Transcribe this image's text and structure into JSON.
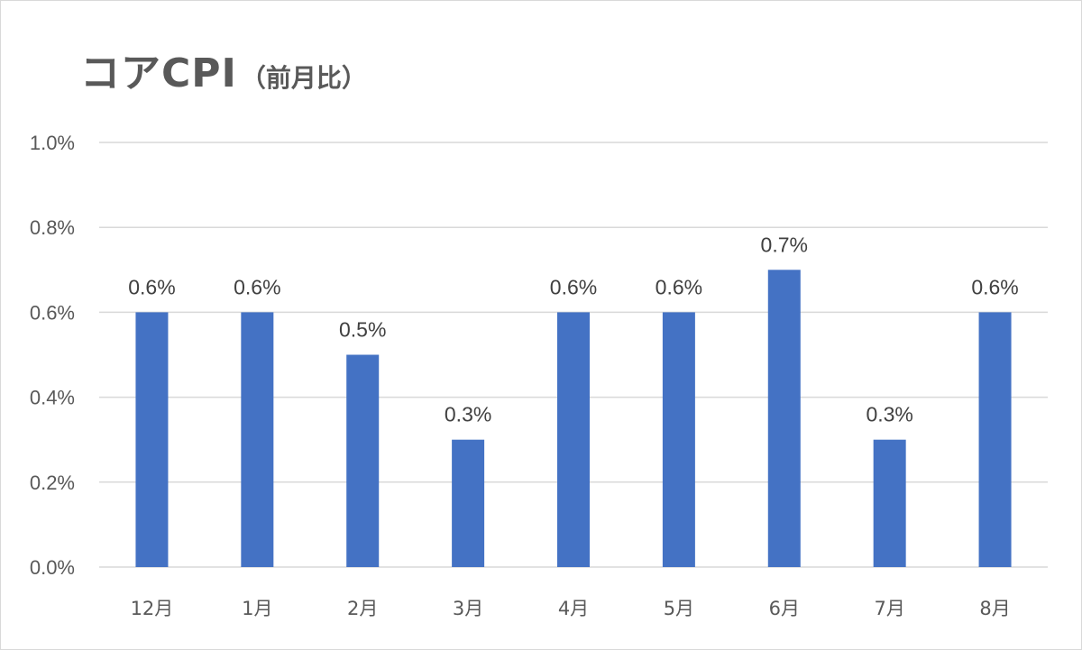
{
  "chart_data": {
    "type": "bar",
    "title_main": "コアCPI",
    "title_sub": "（前月比）",
    "categories": [
      "12月",
      "1月",
      "2月",
      "3月",
      "4月",
      "5月",
      "6月",
      "7月",
      "8月"
    ],
    "values": [
      0.6,
      0.6,
      0.5,
      0.3,
      0.6,
      0.6,
      0.7,
      0.3,
      0.6
    ],
    "value_labels": [
      "0.6%",
      "0.6%",
      "0.5%",
      "0.3%",
      "0.6%",
      "0.6%",
      "0.7%",
      "0.3%",
      "0.6%"
    ],
    "yticks": [
      0.0,
      0.2,
      0.4,
      0.6,
      0.8,
      1.0
    ],
    "ytick_labels": [
      "0.0%",
      "0.2%",
      "0.4%",
      "0.6%",
      "0.8%",
      "1.0%"
    ],
    "ylim": [
      0,
      1.0
    ],
    "grid": true,
    "legend": "none",
    "colors": {
      "bar": "#4472c4",
      "grid": "#d9d9d9",
      "text": "#595959"
    }
  }
}
